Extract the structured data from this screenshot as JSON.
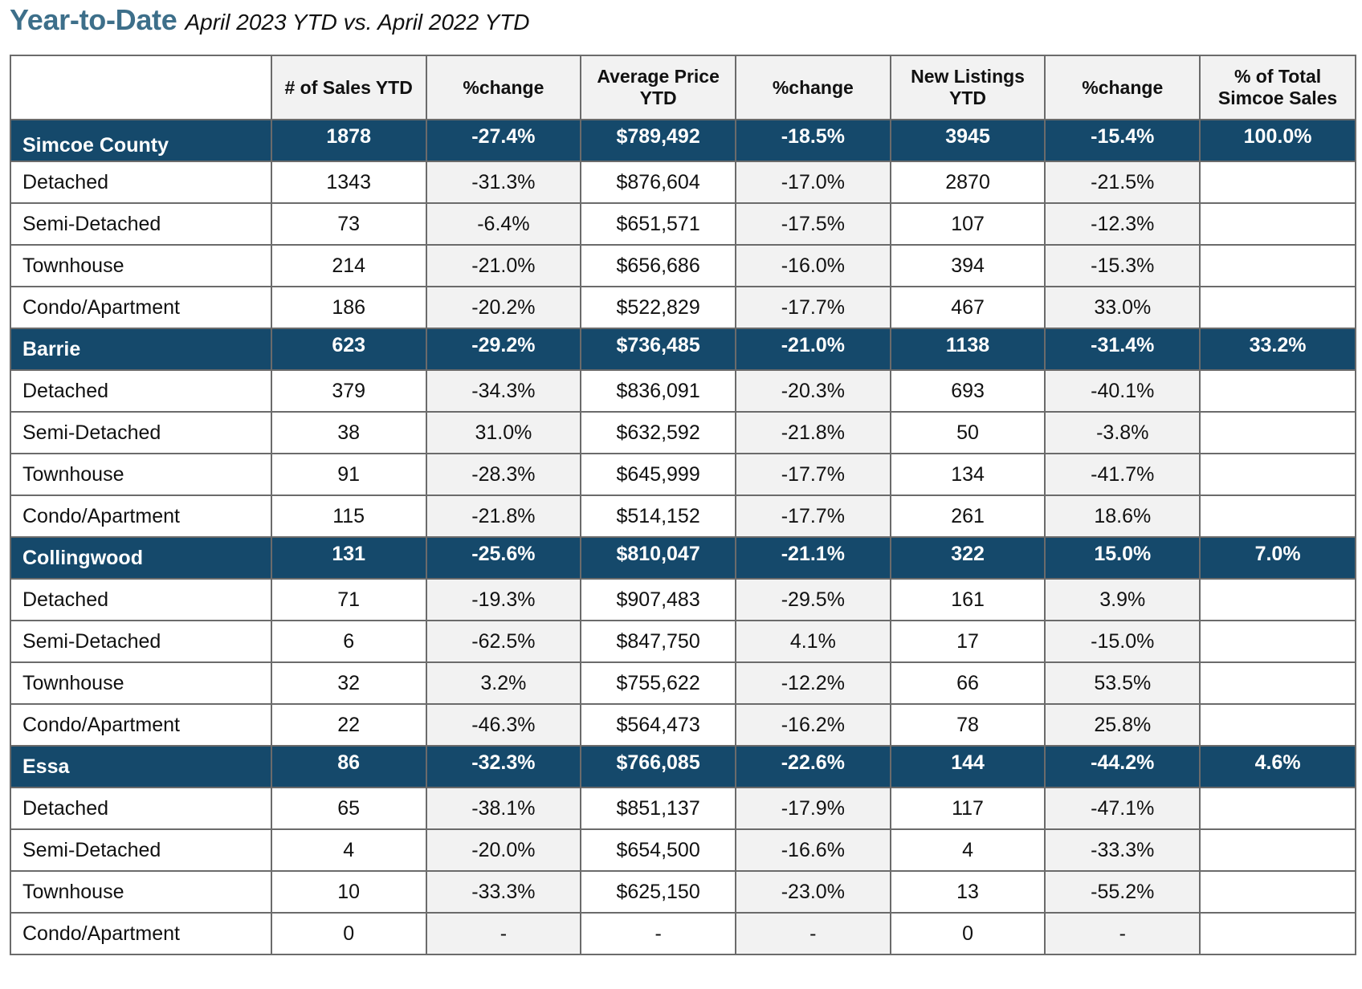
{
  "header": {
    "title": "Year-to-Date",
    "subtitle": "April 2023 YTD vs. April 2022 YTD"
  },
  "table": {
    "columns": [
      "",
      "# of Sales YTD",
      "%change",
      "Average Price YTD",
      "%change",
      "New Listings YTD",
      "%change",
      "% of Total Simcoe Sales"
    ],
    "groups": [
      {
        "region": [
          "Simcoe County",
          "1878",
          "-27.4%",
          "$789,492",
          "-18.5%",
          "3945",
          "-15.4%",
          "100.0%"
        ],
        "rows": [
          [
            "Detached",
            "1343",
            "-31.3%",
            "$876,604",
            "-17.0%",
            "2870",
            "-21.5%",
            ""
          ],
          [
            "Semi-Detached",
            "73",
            "-6.4%",
            "$651,571",
            "-17.5%",
            "107",
            "-12.3%",
            ""
          ],
          [
            "Townhouse",
            "214",
            "-21.0%",
            "$656,686",
            "-16.0%",
            "394",
            "-15.3%",
            ""
          ],
          [
            "Condo/Apartment",
            "186",
            "-20.2%",
            "$522,829",
            "-17.7%",
            "467",
            "33.0%",
            ""
          ]
        ]
      },
      {
        "region": [
          "Barrie",
          "623",
          "-29.2%",
          "$736,485",
          "-21.0%",
          "1138",
          "-31.4%",
          "33.2%"
        ],
        "rows": [
          [
            "Detached",
            "379",
            "-34.3%",
            "$836,091",
            "-20.3%",
            "693",
            "-40.1%",
            ""
          ],
          [
            "Semi-Detached",
            "38",
            "31.0%",
            "$632,592",
            "-21.8%",
            "50",
            "-3.8%",
            ""
          ],
          [
            "Townhouse",
            "91",
            "-28.3%",
            "$645,999",
            "-17.7%",
            "134",
            "-41.7%",
            ""
          ],
          [
            "Condo/Apartment",
            "115",
            "-21.8%",
            "$514,152",
            "-17.7%",
            "261",
            "18.6%",
            ""
          ]
        ]
      },
      {
        "region": [
          "Collingwood",
          "131",
          "-25.6%",
          "$810,047",
          "-21.1%",
          "322",
          "15.0%",
          "7.0%"
        ],
        "rows": [
          [
            "Detached",
            "71",
            "-19.3%",
            "$907,483",
            "-29.5%",
            "161",
            "3.9%",
            ""
          ],
          [
            "Semi-Detached",
            "6",
            "-62.5%",
            "$847,750",
            "4.1%",
            "17",
            "-15.0%",
            ""
          ],
          [
            "Townhouse",
            "32",
            "3.2%",
            "$755,622",
            "-12.2%",
            "66",
            "53.5%",
            ""
          ],
          [
            "Condo/Apartment",
            "22",
            "-46.3%",
            "$564,473",
            "-16.2%",
            "78",
            "25.8%",
            ""
          ]
        ]
      },
      {
        "region": [
          "Essa",
          "86",
          "-32.3%",
          "$766,085",
          "-22.6%",
          "144",
          "-44.2%",
          "4.6%"
        ],
        "rows": [
          [
            "Detached",
            "65",
            "-38.1%",
            "$851,137",
            "-17.9%",
            "117",
            "-47.1%",
            ""
          ],
          [
            "Semi-Detached",
            "4",
            "-20.0%",
            "$654,500",
            "-16.6%",
            "4",
            "-33.3%",
            ""
          ],
          [
            "Townhouse",
            "10",
            "-33.3%",
            "$625,150",
            "-23.0%",
            "13",
            "-55.2%",
            ""
          ],
          [
            "Condo/Apartment",
            "0",
            "-",
            "-",
            "-",
            "0",
            "-",
            ""
          ]
        ]
      }
    ]
  },
  "colors": {
    "title": "#3d6f8a",
    "region_bg": "#15496b",
    "region_text": "#ffffff",
    "shaded_cell": "#f2f2f2",
    "border": "#6b6b6b"
  }
}
